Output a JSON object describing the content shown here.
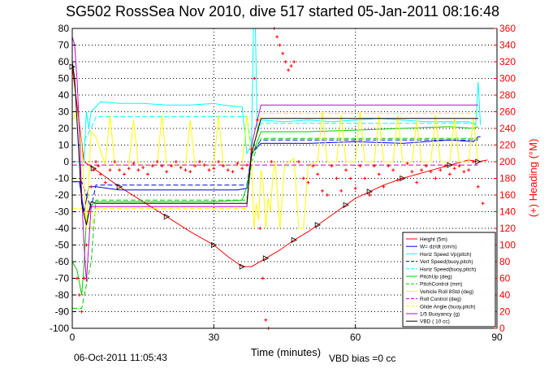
{
  "title": "SG502 RossSea Nov 2010, dive 517 started 05-Jan-2011 08:16:48",
  "footer": {
    "date": "06-Oct-2011 11:05:43",
    "vbd_bias": "VBD bias =0 cc"
  },
  "colors": {
    "height": "#ff0000",
    "w_dzdt": "#0000ff",
    "horiz_speed": "#00ffff",
    "pitch": "#00cc00",
    "vehicle_roll": "#ffff00",
    "buoyancy": "#cc00cc",
    "vbd": "#000000",
    "heading": "#ff0000"
  },
  "chart_data": {
    "type": "line",
    "title": "SG502 RossSea Nov 2010, dive 517 started 05-Jan-2011 08:16:48",
    "xlabel": "Time (minutes)",
    "ylabel": "",
    "y2label": "(+) Heading (°M)",
    "xlim": [
      0,
      90
    ],
    "ylim": [
      -100,
      80
    ],
    "y2lim": [
      0,
      360
    ],
    "xticks": [
      0,
      30,
      60,
      90
    ],
    "yticks": [
      -100,
      -90,
      -80,
      -70,
      -60,
      -50,
      -40,
      -30,
      -20,
      -10,
      0,
      10,
      20,
      30,
      40,
      50,
      60,
      70,
      80
    ],
    "y2ticks": [
      0,
      20,
      40,
      60,
      80,
      100,
      120,
      140,
      160,
      180,
      200,
      220,
      240,
      260,
      280,
      300,
      320,
      340,
      360
    ],
    "grid": true,
    "legend_position": "bottom-right",
    "legend": [
      "Height (5m)",
      "W= dz/dt (cm/s)",
      "Horiz Speed Vp(pitch)",
      "Vert Speed(buoy,pitch)",
      "Horiz Speed(buoy,pitch)",
      "PitchUp (deg)",
      "PitchControl (mm)",
      "Vehicle Roll 8Std (deg)",
      "Roll Control (deg)",
      "Glide Angle (buoy,pitch)",
      "1/5 Buoyancy (g)",
      "VBD ( 10 cc)"
    ],
    "series": [
      {
        "name": "Height (5m)",
        "x": [
          0,
          2.5,
          4.5,
          6.5,
          10,
          15,
          20,
          25,
          30,
          33,
          36,
          38,
          41,
          44,
          47,
          50,
          52,
          55,
          58,
          60,
          63,
          66,
          70,
          75,
          80,
          84,
          86,
          88
        ],
        "y": [
          57,
          0,
          -4,
          -8,
          -15,
          -24,
          -33,
          -42,
          -50,
          -57,
          -63,
          -63,
          -58,
          -53,
          -47,
          -42,
          -38,
          -32,
          -26,
          -22,
          -18,
          -14,
          -10,
          -6,
          -2,
          1,
          0,
          1
        ]
      },
      {
        "name": "W= dz/dt (cm/s)",
        "x": [
          0,
          1.5,
          2.5,
          3.5,
          5,
          10,
          20,
          30,
          35,
          37,
          38,
          40,
          50,
          60,
          70,
          80,
          85,
          86,
          86.5
        ],
        "y": [
          -12,
          -12,
          -30,
          -15,
          -15,
          -17,
          -17,
          -17,
          -17,
          -16,
          5,
          11,
          11,
          12,
          11,
          13,
          12,
          15,
          15
        ]
      },
      {
        "name": "Horiz Speed Vp(pitch)",
        "x": [
          0,
          2.5,
          3,
          3.5,
          4,
          6,
          10,
          15,
          20,
          25,
          30,
          32,
          35,
          36,
          37,
          38,
          38.4,
          38.8,
          39.2,
          40,
          45,
          50,
          55,
          60,
          65,
          70,
          75,
          80,
          84,
          85.5,
          86,
          86.5
        ],
        "y": [
          0,
          0,
          30,
          20,
          30,
          36,
          35,
          35,
          34,
          34,
          35,
          34,
          33,
          33,
          5,
          10,
          82,
          80,
          20,
          25,
          24,
          25,
          24,
          25,
          26,
          25,
          24,
          24,
          24,
          22,
          48,
          22
        ]
      },
      {
        "name": "Vert Speed(buoy,pitch)",
        "x": [
          0,
          2,
          4,
          5,
          36,
          37,
          38,
          40,
          86
        ],
        "y": [
          -12,
          -12,
          -28,
          -14,
          -14,
          -14,
          5,
          13,
          13
        ]
      },
      {
        "name": "Horiz Speed(buoy,pitch)",
        "x": [
          0,
          2,
          4,
          5,
          36,
          37,
          38,
          40,
          86
        ],
        "y": [
          10,
          10,
          20,
          27,
          27,
          27,
          8,
          23,
          23
        ]
      },
      {
        "name": "PitchUp (deg)",
        "x": [
          0,
          1,
          2,
          2.5,
          3,
          4,
          5,
          10,
          20,
          30,
          36,
          37,
          38,
          40,
          50,
          60,
          70,
          80,
          85,
          86
        ],
        "y": [
          -60,
          -65,
          -80,
          -62,
          -35,
          -26,
          -24,
          -24,
          -24,
          -24,
          -23,
          -15,
          3,
          18,
          18,
          19,
          20,
          21,
          20,
          21
        ]
      },
      {
        "name": "PitchControl (mm)",
        "x": [
          0,
          2,
          4,
          5,
          36,
          37,
          38,
          40,
          86
        ],
        "y": [
          -88,
          -88,
          -60,
          -23,
          -23,
          -23,
          0,
          14,
          14
        ]
      },
      {
        "name": "Vehicle Roll 8Std (deg)",
        "x": [
          0,
          1,
          2,
          3,
          4,
          5,
          7,
          8,
          9,
          12,
          13,
          14,
          18,
          19,
          20,
          24,
          25,
          26,
          30,
          31,
          32,
          36,
          37,
          38,
          38.5,
          39,
          39.5,
          40,
          40.5,
          41,
          41.5,
          42,
          42.5,
          43,
          44,
          45,
          46,
          47,
          48,
          49,
          50,
          52,
          53,
          54,
          56,
          57,
          58,
          60,
          61,
          62,
          64,
          65,
          66,
          68,
          69,
          70,
          72,
          73,
          74,
          76,
          77,
          78,
          80,
          81,
          82,
          84,
          85,
          86
        ],
        "y": [
          25,
          30,
          10,
          -40,
          18,
          15,
          -2,
          28,
          -2,
          -2,
          25,
          -2,
          -2,
          28,
          -2,
          -2,
          25,
          -2,
          -2,
          28,
          -2,
          -2,
          28,
          0,
          -40,
          -25,
          -35,
          -5,
          -15,
          -40,
          -22,
          -30,
          -8,
          0,
          -40,
          -2,
          0,
          2,
          -40,
          -40,
          -2,
          0,
          30,
          0,
          0,
          28,
          0,
          0,
          30,
          0,
          0,
          28,
          0,
          0,
          28,
          0,
          0,
          25,
          0,
          0,
          28,
          0,
          0,
          26,
          0,
          0,
          26,
          0
        ]
      },
      {
        "name": "Roll Control (deg)",
        "x": [
          0,
          36,
          37,
          38,
          86
        ],
        "y": [
          -2,
          -2,
          -2,
          -2,
          -2
        ]
      },
      {
        "name": "Glide Angle (buoy,pitch)",
        "x": [
          0,
          2,
          4,
          5,
          36,
          37,
          38,
          40,
          86
        ],
        "y": [
          -28,
          -28,
          -40,
          -28,
          -28,
          -28,
          5,
          29,
          29
        ]
      },
      {
        "name": "1/5 Buoyancy (g)",
        "x": [
          0,
          0.5,
          1,
          1.5,
          2,
          2.5,
          3,
          4,
          5,
          36,
          37,
          38,
          40,
          86
        ],
        "y": [
          75,
          70,
          50,
          20,
          -20,
          -50,
          -72,
          -27,
          -27,
          -27,
          -27,
          10,
          34,
          34
        ]
      },
      {
        "name": "VBD ( 10 cc)",
        "x": [
          0,
          0.5,
          1,
          2,
          3,
          4,
          5,
          36,
          37,
          38,
          40,
          86
        ],
        "y": [
          60,
          50,
          25,
          -25,
          -38,
          -24,
          -25,
          -25,
          -25,
          5,
          26,
          26
        ]
      }
    ],
    "heading_series": {
      "name": "(+) Heading (°M)",
      "x": [
        1,
        1.5,
        2,
        2.5,
        3,
        3.5,
        4,
        4.5,
        5,
        5.5,
        6,
        7,
        8,
        9,
        10,
        11,
        12,
        13,
        14,
        15,
        16,
        17,
        18,
        19,
        20,
        21,
        22,
        23,
        24,
        25,
        26,
        27,
        28,
        29,
        30,
        31,
        32,
        33,
        34,
        35,
        36,
        37,
        38,
        38.6,
        39.2,
        39.8,
        40.4,
        41,
        41.6,
        42.2,
        42.8,
        43.4,
        44,
        44.6,
        45.2,
        45.8,
        46.4,
        47,
        48,
        49,
        50,
        51,
        52,
        53,
        54,
        55,
        56,
        57,
        58,
        59,
        60,
        61,
        62,
        63,
        64,
        65,
        66,
        67,
        68,
        69,
        70,
        71,
        72,
        73,
        74,
        75,
        76,
        77,
        78,
        79,
        80,
        81,
        82,
        83,
        84,
        85,
        86,
        87
      ],
      "y": [
        60,
        40,
        20,
        60,
        100,
        140,
        170,
        190,
        200,
        195,
        185,
        175,
        190,
        200,
        190,
        185,
        192,
        198,
        190,
        193,
        185,
        195,
        200,
        195,
        188,
        195,
        200,
        193,
        190,
        188,
        195,
        200,
        196,
        190,
        192,
        200,
        195,
        190,
        188,
        198,
        192,
        196,
        215,
        300,
        250,
        120,
        60,
        10,
        0,
        200,
        360,
        350,
        340,
        330,
        320,
        310,
        315,
        320,
        200,
        180,
        175,
        195,
        185,
        165,
        160,
        195,
        180,
        165,
        190,
        180,
        168,
        195,
        180,
        160,
        195,
        185,
        170,
        195,
        190,
        178,
        180,
        198,
        188,
        175,
        190,
        195,
        188,
        180,
        190,
        195,
        185,
        192,
        195,
        188,
        190,
        200,
        170,
        150
      ]
    }
  }
}
